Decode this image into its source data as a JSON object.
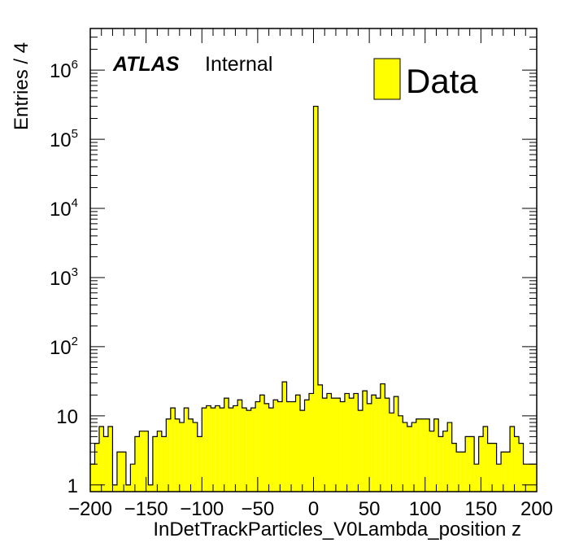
{
  "chart_data": {
    "type": "bar",
    "histogram": true,
    "y_scale": "log",
    "xlabel": "InDetTrackParticles_V0Lambda_position z",
    "ylabel": "Entries / 4",
    "xlim": [
      -200,
      200
    ],
    "ylim": [
      0.8,
      4000000
    ],
    "bin_width": 4,
    "x_ticks": [
      "−200",
      "−150",
      "−100",
      "−50",
      "0",
      "50",
      "100",
      "150",
      "200"
    ],
    "y_tick_values": [
      1,
      10,
      100,
      1000,
      10000,
      100000,
      1000000
    ],
    "y_ticks": [
      {
        "base": "1",
        "exp": ""
      },
      {
        "base": "10",
        "exp": ""
      },
      {
        "base": "10",
        "exp": "2"
      },
      {
        "base": "10",
        "exp": "3"
      },
      {
        "base": "10",
        "exp": "4"
      },
      {
        "base": "10",
        "exp": "5"
      },
      {
        "base": "10",
        "exp": "6"
      }
    ],
    "atlas_label": "ATLAS",
    "atlas_sublabel": "Internal",
    "legend": {
      "label": "Data",
      "position": "top-right"
    },
    "fill_color": "#ffff00",
    "line_color": "#000000",
    "series": [
      {
        "name": "Data",
        "bin_low_edges": [
          -200,
          -196,
          -192,
          -188,
          -184,
          -180,
          -176,
          -172,
          -168,
          -164,
          -160,
          -156,
          -152,
          -148,
          -144,
          -140,
          -136,
          -132,
          -128,
          -124,
          -120,
          -116,
          -112,
          -108,
          -104,
          -100,
          -96,
          -92,
          -88,
          -84,
          -80,
          -76,
          -72,
          -68,
          -64,
          -60,
          -56,
          -52,
          -48,
          -44,
          -40,
          -36,
          -32,
          -28,
          -24,
          -20,
          -16,
          -12,
          -8,
          -4,
          0,
          4,
          8,
          12,
          16,
          20,
          24,
          28,
          32,
          36,
          40,
          44,
          48,
          52,
          56,
          60,
          64,
          68,
          72,
          76,
          80,
          84,
          88,
          92,
          96,
          100,
          104,
          108,
          112,
          116,
          120,
          124,
          128,
          132,
          136,
          140,
          144,
          148,
          152,
          156,
          160,
          164,
          168,
          172,
          176,
          180,
          184,
          188,
          192,
          196
        ],
        "values": [
          2,
          4,
          7,
          5,
          7,
          1,
          3,
          3,
          1,
          2,
          5,
          6,
          6,
          1,
          5,
          6,
          5,
          9,
          13,
          9,
          8,
          13,
          9,
          8,
          5,
          13,
          14,
          13,
          14,
          13,
          18,
          13,
          14,
          17,
          13,
          12,
          13,
          16,
          20,
          15,
          13,
          17,
          16,
          31,
          16,
          16,
          20,
          12,
          17,
          21,
          300000,
          28,
          18,
          21,
          18,
          18,
          16,
          21,
          18,
          21,
          12,
          23,
          15,
          20,
          18,
          29,
          18,
          11,
          19,
          10,
          8,
          7,
          8,
          9,
          9,
          9,
          6,
          9,
          5,
          6,
          8,
          4,
          3,
          3,
          5,
          5,
          2,
          5,
          7,
          4,
          4,
          2,
          3,
          3,
          7,
          5,
          4,
          2,
          2,
          2
        ]
      }
    ]
  }
}
